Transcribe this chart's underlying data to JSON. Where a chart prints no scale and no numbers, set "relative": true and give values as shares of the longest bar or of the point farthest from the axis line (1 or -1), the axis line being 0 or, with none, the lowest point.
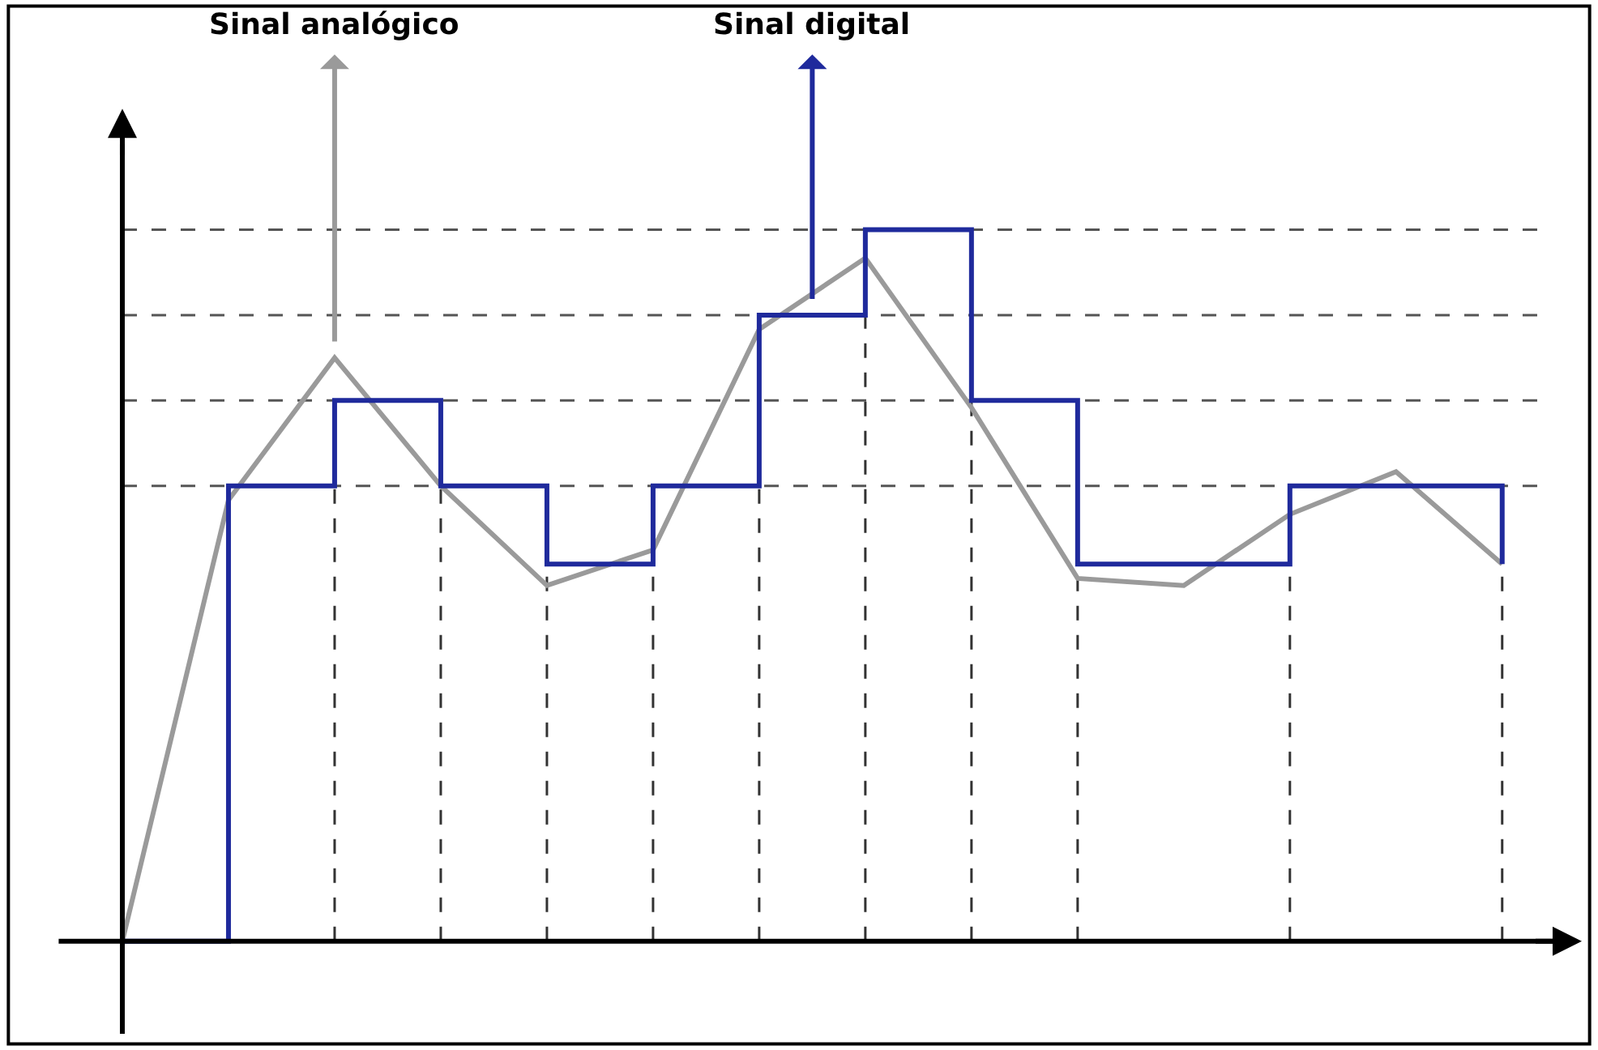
{
  "chart_data": {
    "type": "line",
    "relative": true,
    "grid": false,
    "categories": [
      null,
      null,
      null,
      null,
      null,
      null,
      null,
      null,
      null,
      null,
      null,
      null,
      null,
      null
    ],
    "series": [
      {
        "color": "#9a9a9a",
        "values": [
          0,
          0.62,
          0.82,
          0.64,
          0.5,
          0.55,
          0.86,
          0.96,
          0.75,
          0.51,
          0.5,
          0.6,
          0.66,
          0.53
        ]
      },
      {
        "type": "step",
        "color": "#1f2a9c",
        "values": [
          0,
          0.64,
          0.76,
          0.64,
          0.53,
          0.64,
          0.88,
          1,
          0.76,
          0.53,
          0.53,
          0.64,
          0.64,
          0.53
        ]
      }
    ],
    "ref_lines": [
      {
        "axis": "y",
        "value": 1,
        "color": "#555555",
        "line_style": "dashed"
      },
      {
        "axis": "y",
        "value": 0.88,
        "color": "#555555",
        "line_style": "dashed"
      },
      {
        "axis": "y",
        "value": 0.76,
        "color": "#555555",
        "line_style": "dashed"
      },
      {
        "axis": "y",
        "value": 0.64,
        "color": "#555555",
        "line_style": "dashed"
      }
    ],
    "annotations": [
      "Sinal analógico",
      "Sinal digital"
    ]
  }
}
